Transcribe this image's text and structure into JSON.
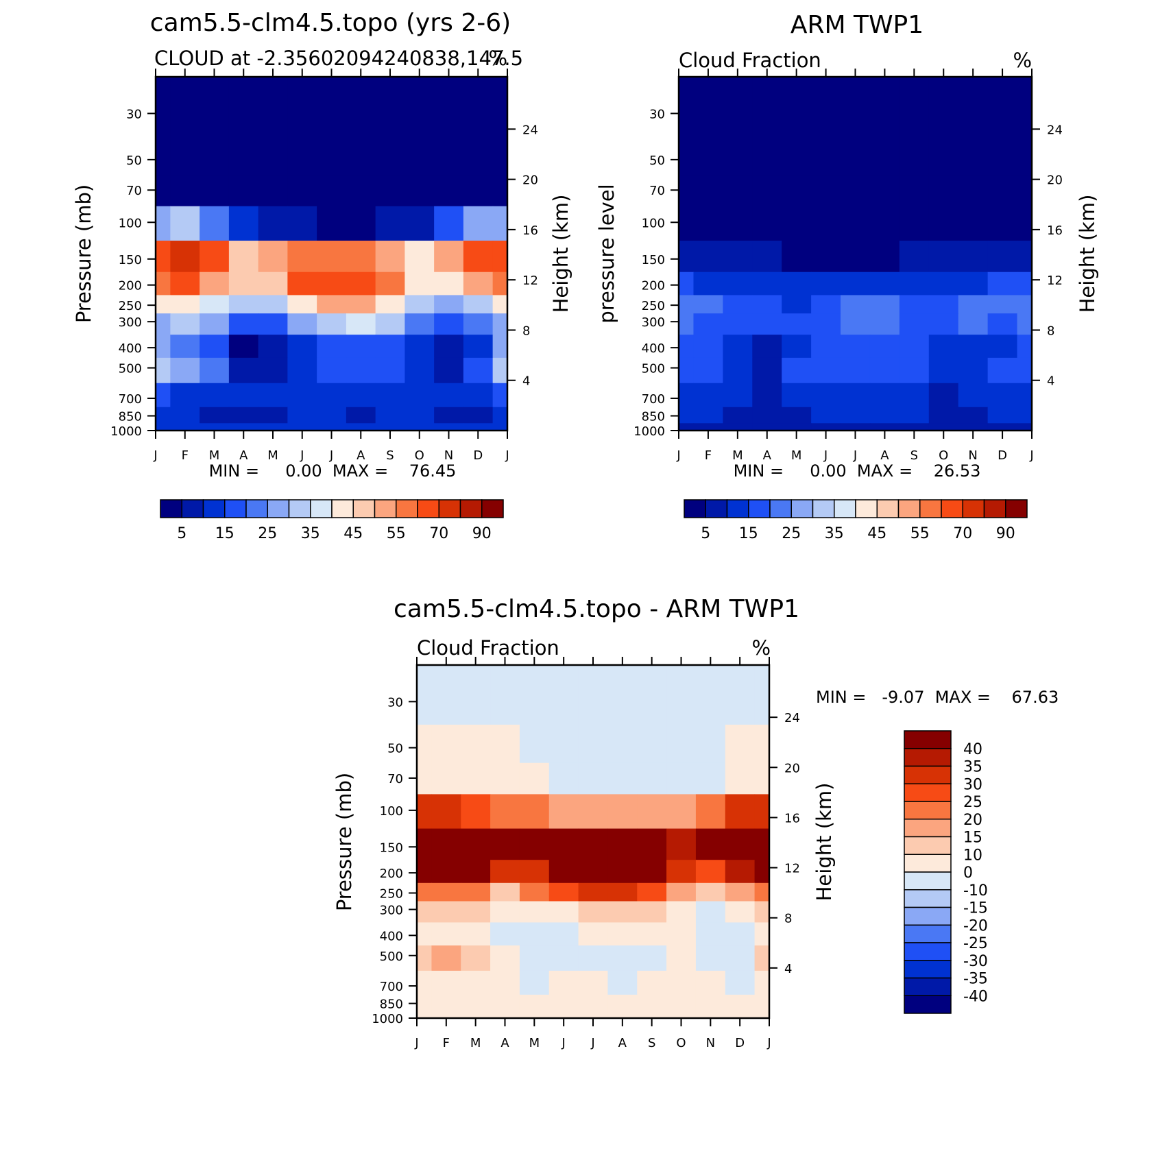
{
  "chart_data": [
    {
      "type": "heatmap",
      "title": "cam5.5-clm4.5.topo (yrs 2-6)",
      "subtitle": "CLOUD at -2.35602094240838,147.5",
      "units": "%",
      "xlabel": "",
      "ylabel": "Pressure (mb)",
      "ylabel_right": "Height (km)",
      "x_ticks": [
        "J",
        "F",
        "M",
        "A",
        "M",
        "J",
        "J",
        "A",
        "S",
        "O",
        "N",
        "D",
        "J"
      ],
      "y_ticks": [
        30,
        50,
        70,
        100,
        150,
        200,
        250,
        300,
        400,
        500,
        700,
        850,
        1000
      ],
      "y2_ticks": [
        4,
        8,
        12,
        16,
        20,
        24
      ],
      "y_scale": "log",
      "ylim": [
        1000,
        20
      ],
      "min_max_text": "MIN =     0.00  MAX =    76.45",
      "colorbar_labels": [
        "5",
        "15",
        "25",
        "35",
        "45",
        "55",
        "70",
        "90"
      ],
      "colorbar_orientation": "horizontal",
      "levels": [
        5,
        10,
        15,
        20,
        25,
        30,
        35,
        40,
        45,
        50,
        55,
        60,
        70,
        80,
        90
      ],
      "colors": [
        "#00007f",
        "#0019a8",
        "#0032d2",
        "#1f50f5",
        "#4a78f4",
        "#8aa8f5",
        "#b4caf5",
        "#d7e7f7",
        "#fdeadb",
        "#fccbb0",
        "#fba57f",
        "#f87640",
        "#f74b15",
        "#d73205",
        "#b51a02",
        "#850000"
      ],
      "lat": [
        30,
        50,
        70,
        100,
        150,
        200,
        250,
        300,
        400,
        500,
        700,
        850,
        1000
      ],
      "months": [
        "J",
        "F",
        "M",
        "A",
        "M",
        "J",
        "J",
        "A",
        "S",
        "O",
        "N",
        "D",
        "J"
      ],
      "values": [
        [
          0,
          0,
          0,
          0,
          0,
          0,
          0,
          0,
          0,
          0,
          0,
          0,
          0
        ],
        [
          0,
          0,
          0,
          0,
          0,
          0,
          0,
          0,
          0,
          0,
          0,
          0,
          0
        ],
        [
          1,
          1,
          0,
          0,
          0,
          0,
          0,
          0,
          0,
          0,
          0,
          1,
          1
        ],
        [
          28,
          30,
          22,
          12,
          8,
          5,
          4,
          4,
          6,
          9,
          18,
          26,
          28
        ],
        [
          68,
          72,
          60,
          48,
          54,
          58,
          58,
          56,
          50,
          40,
          54,
          66,
          68
        ],
        [
          55,
          62,
          52,
          45,
          48,
          60,
          66,
          66,
          58,
          42,
          40,
          50,
          55
        ],
        [
          40,
          42,
          36,
          30,
          34,
          44,
          50,
          50,
          44,
          32,
          28,
          34,
          40
        ],
        [
          28,
          30,
          26,
          18,
          18,
          26,
          34,
          36,
          30,
          22,
          18,
          22,
          28
        ],
        [
          25,
          22,
          18,
          4,
          5,
          10,
          15,
          18,
          16,
          12,
          5,
          12,
          25
        ],
        [
          30,
          28,
          22,
          8,
          9,
          12,
          15,
          16,
          15,
          12,
          8,
          16,
          30
        ],
        [
          18,
          14,
          12,
          10,
          12,
          14,
          14,
          12,
          14,
          14,
          12,
          14,
          18
        ],
        [
          12,
          10,
          8,
          6,
          6,
          10,
          10,
          8,
          10,
          10,
          6,
          6,
          12
        ],
        [
          12,
          12,
          12,
          12,
          12,
          12,
          12,
          12,
          12,
          12,
          12,
          12,
          12
        ]
      ]
    },
    {
      "type": "heatmap",
      "title": "ARM TWP1",
      "subtitle": "Cloud Fraction",
      "units": "%",
      "xlabel": "",
      "ylabel": "pressure level",
      "ylabel_right": "Height (km)",
      "x_ticks": [
        "J",
        "F",
        "M",
        "A",
        "M",
        "J",
        "J",
        "A",
        "S",
        "O",
        "N",
        "D",
        "J"
      ],
      "y_ticks": [
        30,
        50,
        70,
        100,
        150,
        200,
        250,
        300,
        400,
        500,
        700,
        850,
        1000
      ],
      "y2_ticks": [
        4,
        8,
        12,
        16,
        20,
        24
      ],
      "y_scale": "log",
      "ylim": [
        1000,
        20
      ],
      "min_max_text": "MIN =     0.00  MAX =    26.53",
      "colorbar_labels": [
        "5",
        "15",
        "25",
        "35",
        "45",
        "55",
        "70",
        "90"
      ],
      "colorbar_orientation": "horizontal",
      "levels": [
        5,
        10,
        15,
        20,
        25,
        30,
        35,
        40,
        45,
        50,
        55,
        60,
        70,
        80,
        90
      ],
      "colors": [
        "#00007f",
        "#0019a8",
        "#0032d2",
        "#1f50f5",
        "#4a78f4",
        "#8aa8f5",
        "#b4caf5",
        "#d7e7f7",
        "#fdeadb",
        "#fccbb0",
        "#fba57f",
        "#f87640",
        "#f74b15",
        "#d73205",
        "#b51a02",
        "#850000"
      ],
      "lat": [
        30,
        50,
        70,
        100,
        150,
        200,
        250,
        300,
        400,
        500,
        700,
        850,
        1000
      ],
      "months": [
        "J",
        "F",
        "M",
        "A",
        "M",
        "J",
        "J",
        "A",
        "S",
        "O",
        "N",
        "D",
        "J"
      ],
      "values": [
        [
          0,
          0,
          0,
          0,
          0,
          0,
          0,
          0,
          0,
          0,
          0,
          0,
          0
        ],
        [
          0,
          0,
          0,
          0,
          0,
          0,
          0,
          0,
          0,
          0,
          0,
          0,
          0
        ],
        [
          0,
          0,
          0,
          0,
          0,
          0,
          0,
          0,
          0,
          0,
          0,
          0,
          0
        ],
        [
          2,
          2,
          2,
          2,
          1,
          1,
          1,
          1,
          1,
          1,
          1,
          2,
          2
        ],
        [
          8,
          7,
          7,
          6,
          4,
          3,
          3,
          4,
          5,
          6,
          7,
          8,
          8
        ],
        [
          16,
          14,
          14,
          14,
          14,
          13,
          14,
          13,
          13,
          13,
          14,
          15,
          16
        ],
        [
          22,
          22,
          18,
          16,
          14,
          18,
          21,
          20,
          16,
          16,
          22,
          20,
          22
        ],
        [
          20,
          19,
          16,
          15,
          16,
          17,
          21,
          20,
          16,
          16,
          22,
          19,
          20
        ],
        [
          16,
          16,
          14,
          8,
          14,
          16,
          18,
          18,
          16,
          12,
          12,
          14,
          16
        ],
        [
          16,
          16,
          12,
          8,
          16,
          18,
          18,
          18,
          18,
          10,
          14,
          16,
          16
        ],
        [
          14,
          12,
          10,
          8,
          10,
          14,
          14,
          14,
          14,
          8,
          10,
          12,
          14
        ],
        [
          12,
          10,
          8,
          8,
          8,
          10,
          10,
          10,
          10,
          8,
          8,
          10,
          12
        ],
        [
          8,
          8,
          8,
          8,
          8,
          8,
          8,
          8,
          8,
          8,
          8,
          8,
          8
        ]
      ]
    },
    {
      "type": "heatmap",
      "title": "cam5.5-clm4.5.topo - ARM TWP1",
      "subtitle": "Cloud Fraction",
      "units": "%",
      "xlabel": "",
      "ylabel": "Pressure (mb)",
      "ylabel_right": "Height (km)",
      "x_ticks": [
        "J",
        "F",
        "M",
        "A",
        "M",
        "J",
        "J",
        "A",
        "S",
        "O",
        "N",
        "D",
        "J"
      ],
      "y_ticks": [
        30,
        50,
        70,
        100,
        150,
        200,
        250,
        300,
        400,
        500,
        700,
        850,
        1000
      ],
      "y2_ticks": [
        4,
        8,
        12,
        16,
        20,
        24
      ],
      "y_scale": "log",
      "ylim": [
        1000,
        20
      ],
      "min_max_text": "MIN =   -9.07  MAX =    67.63",
      "colorbar_labels": [
        "40",
        "35",
        "30",
        "25",
        "20",
        "15",
        "10",
        "0",
        "-10",
        "-15",
        "-20",
        "-25",
        "-30",
        "-35",
        "-40"
      ],
      "colorbar_orientation": "vertical",
      "levels": [
        -40,
        -35,
        -30,
        -25,
        -20,
        -15,
        -10,
        0,
        10,
        15,
        20,
        25,
        30,
        35,
        40
      ],
      "colors": [
        "#00007f",
        "#0019a8",
        "#0032d2",
        "#1f50f5",
        "#4a78f4",
        "#8aa8f5",
        "#b4caf5",
        "#d7e7f7",
        "#fdeadb",
        "#fccbb0",
        "#fba57f",
        "#f87640",
        "#f74b15",
        "#d73205",
        "#b51a02",
        "#850000"
      ],
      "lat": [
        30,
        50,
        70,
        100,
        150,
        200,
        250,
        300,
        400,
        500,
        700,
        850,
        1000
      ],
      "months": [
        "J",
        "F",
        "M",
        "A",
        "M",
        "J",
        "J",
        "A",
        "S",
        "O",
        "N",
        "D",
        "J"
      ],
      "values": [
        [
          -1,
          -1,
          -1,
          -1,
          -1,
          -1,
          -1,
          -1,
          -1,
          -1,
          -1,
          -1,
          -1
        ],
        [
          1,
          1,
          1,
          1,
          -1,
          -1,
          -1,
          -1,
          -1,
          -1,
          -1,
          1,
          1
        ],
        [
          2,
          2,
          2,
          2,
          3,
          -1,
          -1,
          -1,
          -1,
          -1,
          -1,
          2,
          2
        ],
        [
          32,
          34,
          28,
          22,
          20,
          18,
          16,
          16,
          16,
          18,
          24,
          30,
          32
        ],
        [
          62,
          66,
          58,
          45,
          52,
          56,
          56,
          54,
          46,
          36,
          48,
          60,
          62
        ],
        [
          40,
          46,
          40,
          32,
          34,
          46,
          52,
          52,
          44,
          30,
          28,
          36,
          40
        ],
        [
          22,
          24,
          20,
          14,
          20,
          28,
          32,
          32,
          28,
          18,
          10,
          16,
          22
        ],
        [
          10,
          12,
          12,
          5,
          5,
          8,
          12,
          14,
          12,
          8,
          -2,
          6,
          10
        ],
        [
          8,
          6,
          6,
          -3,
          -3,
          -3,
          2,
          2,
          2,
          2,
          -3,
          -3,
          8
        ],
        [
          14,
          16,
          10,
          1,
          -2,
          -3,
          -2,
          -2,
          -3,
          2,
          -2,
          -3,
          14
        ],
        [
          4,
          3,
          3,
          2,
          -2,
          2,
          1,
          -2,
          1,
          5,
          3,
          -2,
          4
        ],
        [
          3,
          3,
          3,
          3,
          3,
          3,
          3,
          3,
          3,
          3,
          3,
          3,
          3
        ],
        [
          4,
          4,
          4,
          4,
          4,
          4,
          4,
          4,
          4,
          4,
          4,
          4,
          4
        ]
      ]
    }
  ]
}
